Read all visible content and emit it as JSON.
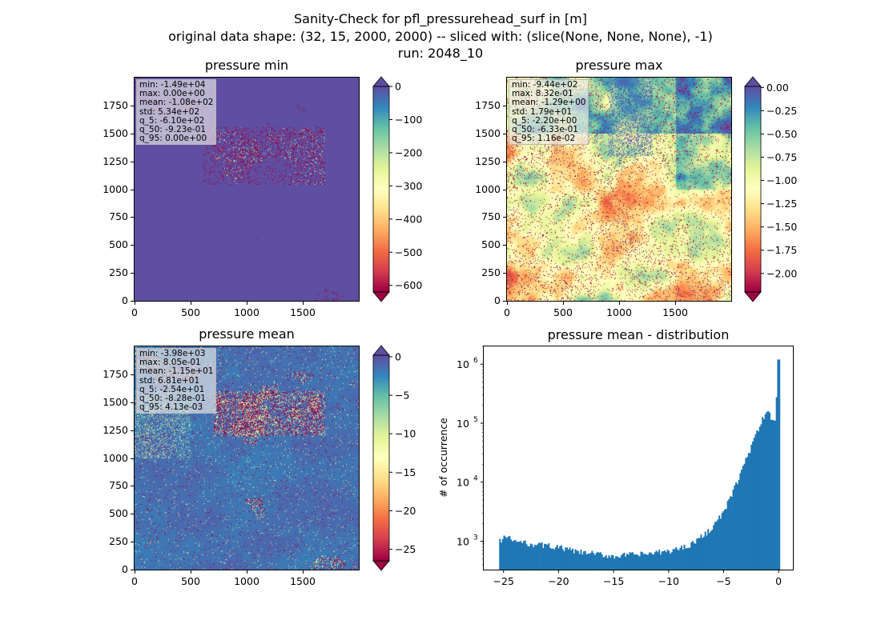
{
  "figure": {
    "title_lines": [
      "Sanity-Check for pfl_pressurehead_surf in [m]",
      "original data shape: (32, 15, 2000, 2000) -- sliced with: (slice(None, None, None), -1)",
      "run: 2048_10"
    ]
  },
  "panels": [
    {
      "title": "pressure min",
      "stats": [
        "min: -1.49e+04",
        "max: 0.00e+00",
        "mean: -1.08e+02",
        "std: 5.34e+02",
        "q_5: -6.10e+02",
        "q_50: -9.23e-01",
        "q_95: 0.00e+00"
      ],
      "xticks": [
        "0",
        "500",
        "1000",
        "1500"
      ],
      "yticks": [
        "0",
        "250",
        "500",
        "750",
        "1000",
        "1250",
        "1500",
        "1750"
      ],
      "colorbar": {
        "ticks": [
          "0",
          "−100",
          "−200",
          "−300",
          "−400",
          "−500",
          "−600"
        ],
        "vmin": -620,
        "vmax": 0,
        "extend": "both",
        "cmap": "Spectral"
      }
    },
    {
      "title": "pressure max",
      "stats": [
        "min: -9.44e+02",
        "max: 8.32e-01",
        "mean: -1.29e+00",
        "std: 1.79e+01",
        "q_5: -2.20e+00",
        "q_50: -6.33e-01",
        "q_95: 1.16e-02"
      ],
      "xticks": [
        "0",
        "500",
        "1000",
        "1500"
      ],
      "yticks": [
        "0",
        "250",
        "500",
        "750",
        "1000",
        "1250",
        "1500",
        "1750"
      ],
      "colorbar": {
        "ticks": [
          "0.00",
          "−0.25",
          "−0.50",
          "−0.75",
          "−1.00",
          "−1.25",
          "−1.50",
          "−1.75",
          "−2.00"
        ],
        "vmin": -2.2,
        "vmax": 0.0116,
        "extend": "both",
        "cmap": "Spectral"
      }
    },
    {
      "title": "pressure mean",
      "stats": [
        "min: -3.98e+03",
        "max: 8.05e-01",
        "mean: -1.15e+01",
        "std: 6.81e+01",
        "q_5: -2.54e+01",
        "q_50: -8.28e-01",
        "q_95: 4.13e-03"
      ],
      "xticks": [
        "0",
        "500",
        "1000",
        "1500"
      ],
      "yticks": [
        "0",
        "250",
        "500",
        "750",
        "1000",
        "1250",
        "1500",
        "1750"
      ],
      "colorbar": {
        "ticks": [
          "0",
          "−5",
          "−10",
          "−15",
          "−20",
          "−25"
        ],
        "vmin": -26.5,
        "vmax": 0.2,
        "extend": "both",
        "cmap": "Spectral"
      }
    }
  ],
  "chart_data": {
    "type": "bar",
    "title": "pressure mean - distribution",
    "xlabel": "",
    "ylabel": "# of occurrence",
    "yscale": "log",
    "xlim": [
      -26.8,
      1.3
    ],
    "ylim": [
      330,
      2000000
    ],
    "xtick_labels": [
      "−25",
      "−20",
      "−15",
      "−10",
      "−5",
      "0"
    ],
    "ytick_labels": [
      "10",
      "10",
      "10",
      "10"
    ],
    "ytick_exponents": [
      "3",
      "4",
      "5",
      "6"
    ],
    "bin_start": -25.4,
    "bin_width": 0.127,
    "anchors": [
      [
        -25.4,
        1000
      ],
      [
        -25.0,
        1200
      ],
      [
        -24,
        1000
      ],
      [
        -23,
        920
      ],
      [
        -22,
        880
      ],
      [
        -21,
        840
      ],
      [
        -20,
        780
      ],
      [
        -19,
        700
      ],
      [
        -18,
        640
      ],
      [
        -17,
        620
      ],
      [
        -16,
        580
      ],
      [
        -15,
        560
      ],
      [
        -14,
        580
      ],
      [
        -13,
        590
      ],
      [
        -12,
        610
      ],
      [
        -11,
        640
      ],
      [
        -10,
        680
      ],
      [
        -9,
        760
      ],
      [
        -8,
        900
      ],
      [
        -7,
        1200
      ],
      [
        -6,
        1800
      ],
      [
        -5,
        3200
      ],
      [
        -4,
        8500
      ],
      [
        -3,
        25000
      ],
      [
        -2,
        70000
      ],
      [
        -1.2,
        160000
      ],
      [
        -0.8,
        130000
      ],
      [
        -0.35,
        110000
      ],
      [
        -0.1,
        1200000
      ]
    ],
    "bar_color": "#1f77b4"
  }
}
